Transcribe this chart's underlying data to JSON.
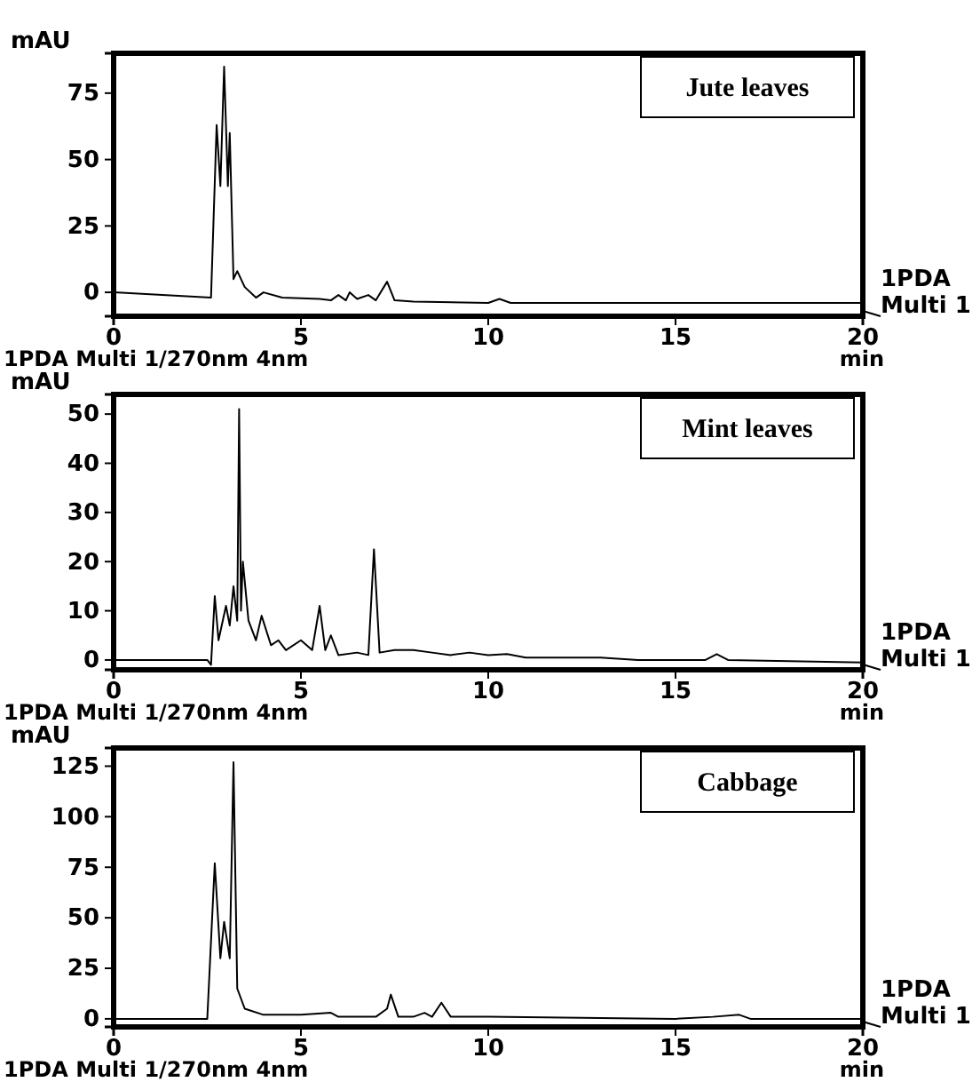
{
  "chart_data": [
    {
      "type": "line",
      "title": "Jute leaves",
      "xlabel": "min",
      "ylabel": "mAU",
      "xlim": [
        0,
        20
      ],
      "xticks": [
        0,
        5,
        10,
        15,
        20
      ],
      "ylim": [
        -9,
        90
      ],
      "yticks": [
        0,
        25,
        50,
        75
      ],
      "grid": false,
      "annotations": [
        "1PDA Multi 1/270nm 4nm",
        "1PDA Multi 1"
      ],
      "series": [
        {
          "color": "#000000",
          "x": [
            0,
            2.6,
            2.75,
            2.85,
            2.95,
            3.05,
            3.1,
            3.2,
            3.3,
            3.5,
            3.8,
            4.0,
            4.5,
            5.5,
            5.8,
            6.0,
            6.2,
            6.3,
            6.5,
            6.8,
            7.0,
            7.3,
            7.5,
            8.0,
            10.0,
            10.3,
            10.6,
            20
          ],
          "values": [
            0,
            -2,
            63,
            40,
            85,
            40,
            60,
            5,
            8,
            2,
            -2,
            0,
            -2,
            -2.5,
            -3,
            -1,
            -3,
            0,
            -2.5,
            -1,
            -3,
            4,
            -3,
            -3.5,
            -4,
            -2.5,
            -4,
            -4
          ]
        }
      ]
    },
    {
      "type": "line",
      "title": "Mint leaves",
      "xlabel": "min",
      "ylabel": "mAU",
      "xlim": [
        0,
        20
      ],
      "xticks": [
        0,
        5,
        10,
        15,
        20
      ],
      "ylim": [
        -2,
        54
      ],
      "yticks": [
        0,
        10,
        20,
        30,
        40,
        50
      ],
      "grid": false,
      "annotations": [
        "1PDA Multi 1/270nm 4nm",
        "1PDA Multi 1"
      ],
      "series": [
        {
          "color": "#000000",
          "x": [
            0,
            2.5,
            2.6,
            2.7,
            2.8,
            3.0,
            3.1,
            3.2,
            3.3,
            3.35,
            3.4,
            3.45,
            3.6,
            3.8,
            3.95,
            4.2,
            4.4,
            4.6,
            5.0,
            5.3,
            5.5,
            5.65,
            5.8,
            6.0,
            6.5,
            6.8,
            6.95,
            7.1,
            7.5,
            8.0,
            8.5,
            9.0,
            9.5,
            10.0,
            10.5,
            11.0,
            12.0,
            13.0,
            14.0,
            15.8,
            16.1,
            16.4,
            20
          ],
          "values": [
            0,
            0,
            -1,
            13,
            4,
            11,
            7,
            15,
            8,
            51,
            10,
            20,
            8,
            4,
            9,
            3,
            4,
            2,
            4,
            2,
            11,
            2,
            5,
            1,
            1.5,
            1,
            22.5,
            1.5,
            2,
            2,
            1.5,
            1,
            1.5,
            1,
            1.2,
            0.5,
            0.5,
            0.5,
            0,
            0,
            1.2,
            0,
            -0.5
          ]
        }
      ]
    },
    {
      "type": "line",
      "title": "Cabbage",
      "xlabel": "min",
      "ylabel": "mAU",
      "xlim": [
        0,
        20
      ],
      "xticks": [
        0,
        5,
        10,
        15,
        20
      ],
      "ylim": [
        -4,
        134
      ],
      "yticks": [
        0,
        25,
        50,
        75,
        100,
        125
      ],
      "grid": false,
      "annotations": [
        "1PDA Multi 1/270nm 4nm",
        "1PDA Multi 1"
      ],
      "series": [
        {
          "color": "#000000",
          "x": [
            0,
            2.5,
            2.7,
            2.85,
            2.95,
            3.1,
            3.2,
            3.3,
            3.5,
            4.0,
            5.0,
            5.8,
            6.0,
            7.0,
            7.3,
            7.4,
            7.6,
            8.0,
            8.3,
            8.5,
            8.75,
            9.0,
            10.0,
            15.0,
            16.0,
            16.7,
            17.0,
            20
          ],
          "values": [
            0,
            0,
            77,
            30,
            48,
            30,
            127,
            15,
            5,
            2,
            2,
            3,
            1,
            1,
            5,
            12,
            1,
            1,
            3,
            1,
            8,
            1,
            1,
            0,
            1,
            2,
            0,
            0
          ]
        }
      ]
    }
  ]
}
